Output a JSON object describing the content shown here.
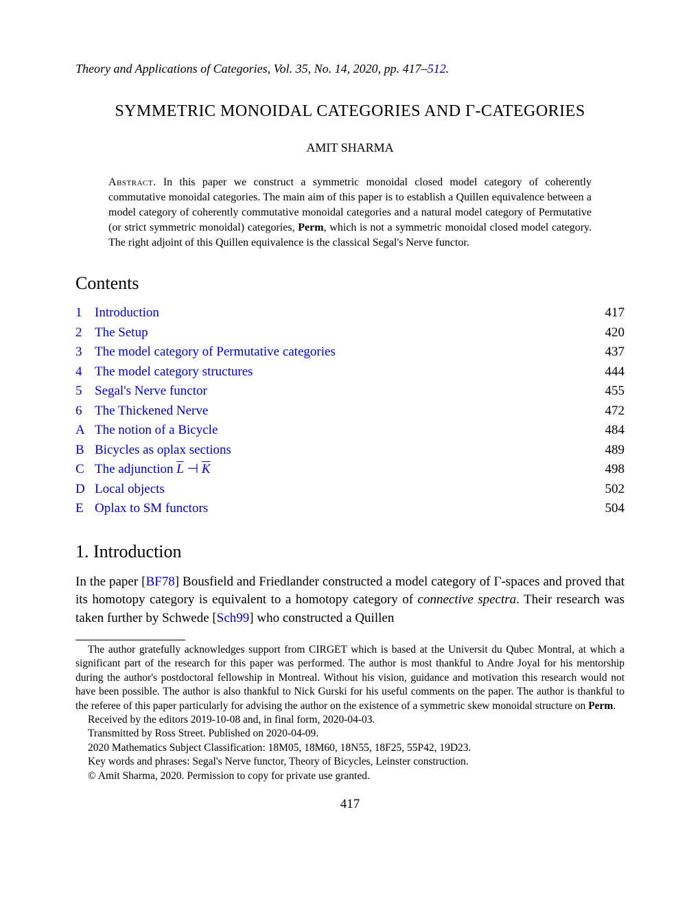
{
  "header": {
    "journal_prefix": "Theory and Applications of Categories,",
    "vol_text": " Vol. 35, No. 14, 2020, pp. 417",
    "dash": "–",
    "end_page": "512",
    "period": "."
  },
  "title": "SYMMETRIC MONOIDAL CATEGORIES AND Γ-CATEGORIES",
  "author": "AMIT SHARMA",
  "abstract": {
    "label": "Abstract.",
    "text_before_bold": "    In this paper we construct a symmetric monoidal closed model category of coherently commutative monoidal categories. The main aim of this paper is to establish a Quillen equivalence between a model category of coherently commutative monoidal categories and a natural model category of Permutative (or strict symmetric monoidal) categories, ",
    "bold_word": "Perm",
    "text_after_bold": ", which is not a symmetric monoidal closed model category. The right adjoint of this Quillen equivalence is the classical Segal's Nerve functor."
  },
  "contents_heading": "Contents",
  "toc": [
    {
      "num": "1",
      "title": "Introduction",
      "page": "417",
      "link": true
    },
    {
      "num": "2",
      "title": "The Setup",
      "page": "420",
      "link": true
    },
    {
      "num": "3",
      "title": "The model category of Permutative categories",
      "page": "437",
      "link": true
    },
    {
      "num": "4",
      "title": "The model category structures",
      "page": "444",
      "link": true
    },
    {
      "num": "5",
      "title": "Segal's Nerve functor",
      "page": "455",
      "link": true
    },
    {
      "num": "6",
      "title": "The Thickened Nerve",
      "page": "472",
      "link": true
    },
    {
      "num": "A",
      "title": "The notion of a Bicycle",
      "page": "484",
      "link": true
    },
    {
      "num": "B",
      "title": "Bicycles as oplax sections",
      "page": "489",
      "link": true
    },
    {
      "num": "C",
      "title": "__ADJUNCTION__",
      "page": "498",
      "link": true
    },
    {
      "num": "D",
      "title": "Local objects",
      "page": "502",
      "link": true
    },
    {
      "num": "E",
      "title": "Oplax to SM functors",
      "page": "504",
      "link": true
    }
  ],
  "adjunction_title_prefix": "The adjunction ",
  "section1_heading": "1. Introduction",
  "intro": {
    "t1": "In the paper [",
    "cite1": "BF78",
    "t2": "] Bousfield and Friedlander constructed a model category of Γ-spaces and proved that its homotopy category is equivalent to a homotopy category of ",
    "ital1": "connective spectra",
    "t3": ". Their research was taken further by Schwede [",
    "cite2": "Sch99",
    "t4": "] who constructed a Quillen"
  },
  "footnotes": {
    "ack_before_bold": "The author gratefully acknowledges support from CIRGET which is based at the Universit du Qubec Montral, at which a significant part of the research for this paper was performed. The author is most thankful to Andre Joyal for his mentorship during the author's postdoctoral fellowship in Montreal. Without his vision, guidance and motivation this research would not have been possible. The author is also thankful to Nick Gurski for his useful comments on the paper. The author is thankful to the referee of this paper particularly for advising the author on the existence of a symmetric skew monoidal structure on ",
    "ack_bold": "Perm",
    "ack_after_bold": ".",
    "received": "Received by the editors 2019-10-08 and, in final form, 2020-04-03.",
    "transmitted": "Transmitted by Ross Street. Published on 2020-04-09.",
    "msc": "2020 Mathematics Subject Classification: 18M05, 18M60, 18N55, 18F25, 55P42, 19D23.",
    "keywords": "Key words and phrases: Segal's Nerve functor, Theory of Bicycles, Leinster construction.",
    "copyright": "© Amit Sharma, 2020. Permission to copy for private use granted."
  },
  "page_number": "417",
  "colors": {
    "link": "#0000cc",
    "text": "#000000",
    "background": "#ffffff"
  }
}
